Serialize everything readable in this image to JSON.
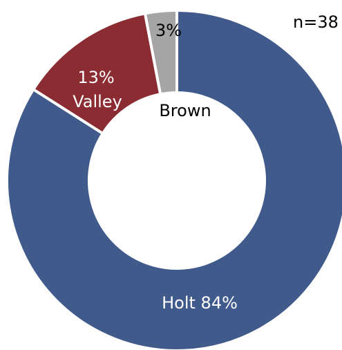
{
  "chart_data": {
    "type": "pie",
    "donut": true,
    "annotation": "n=38",
    "series": [
      {
        "name": "Holt",
        "value": 84,
        "label": "Holt 84%",
        "color": "#405A8B",
        "label_color": "#FFFFFF"
      },
      {
        "name": "Valley",
        "value": 13,
        "label_pct": "13%",
        "label_name": "Valley",
        "color": "#8B2C33",
        "label_color": "#FFFFFF"
      },
      {
        "name": "Brown",
        "value": 3,
        "label_pct": "3%",
        "label_name": "Brown",
        "color": "#A5A5A5",
        "label_color": "#000000"
      }
    ],
    "start_angle_deg": 0,
    "direction": "clockwise",
    "legend": "none"
  }
}
